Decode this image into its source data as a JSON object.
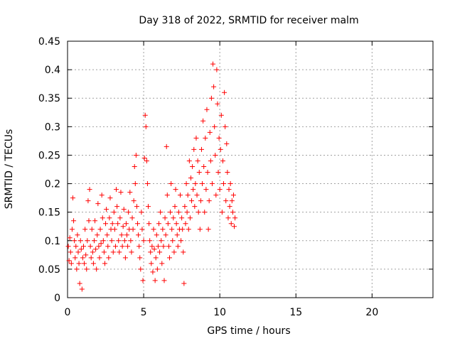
{
  "chart_data": {
    "type": "scatter",
    "title": "Day 318 of 2022, SRMTID for receiver malm",
    "xlabel": "GPS time / hours",
    "ylabel": "SRMTID / TECUs",
    "xlim": [
      0,
      24
    ],
    "ylim": [
      0,
      0.45
    ],
    "xticks": [
      {
        "value": 0,
        "label": "0"
      },
      {
        "value": 5,
        "label": "5"
      },
      {
        "value": 10,
        "label": "10"
      },
      {
        "value": 15,
        "label": "15"
      },
      {
        "value": 20,
        "label": "20"
      }
    ],
    "yticks": [
      {
        "value": 0,
        "label": "0"
      },
      {
        "value": 0.05,
        "label": "0.05"
      },
      {
        "value": 0.1,
        "label": "0.1"
      },
      {
        "value": 0.15,
        "label": "0.15"
      },
      {
        "value": 0.2,
        "label": "0.2"
      },
      {
        "value": 0.25,
        "label": "0.25"
      },
      {
        "value": 0.3,
        "label": "0.3"
      },
      {
        "value": 0.35,
        "label": "0.35"
      },
      {
        "value": 0.4,
        "label": "0.4"
      },
      {
        "value": 0.45,
        "label": "0.45"
      }
    ],
    "grid": true,
    "marker": "plus",
    "color": "#ff0000",
    "series": [
      {
        "points": [
          [
            0.05,
            0.09
          ],
          [
            0.1,
            0.065
          ],
          [
            0.15,
            0.105
          ],
          [
            0.2,
            0.08
          ],
          [
            0.25,
            0.06
          ],
          [
            0.3,
            0.12
          ],
          [
            0.35,
            0.175
          ],
          [
            0.4,
            0.135
          ],
          [
            0.45,
            0.1
          ],
          [
            0.5,
            0.07
          ],
          [
            0.55,
            0.09
          ],
          [
            0.6,
            0.05
          ],
          [
            0.65,
            0.11
          ],
          [
            0.7,
            0.08
          ],
          [
            0.75,
            0.06
          ],
          [
            0.8,
            0.025
          ],
          [
            0.85,
            0.1
          ],
          [
            0.9,
            0.085
          ],
          [
            0.95,
            0.015
          ],
          [
            1.0,
            0.07
          ],
          [
            1.05,
            0.09
          ],
          [
            1.1,
            0.06
          ],
          [
            1.15,
            0.12
          ],
          [
            1.2,
            0.075
          ],
          [
            1.25,
            0.05
          ],
          [
            1.3,
            0.1
          ],
          [
            1.35,
            0.17
          ],
          [
            1.4,
            0.135
          ],
          [
            1.45,
            0.19
          ],
          [
            1.5,
            0.09
          ],
          [
            1.55,
            0.07
          ],
          [
            1.6,
            0.12
          ],
          [
            1.65,
            0.08
          ],
          [
            1.7,
            0.06
          ],
          [
            1.75,
            0.1
          ],
          [
            1.8,
            0.135
          ],
          [
            1.85,
            0.085
          ],
          [
            1.9,
            0.05
          ],
          [
            1.95,
            0.11
          ],
          [
            2.0,
            0.165
          ],
          [
            2.05,
            0.09
          ],
          [
            2.1,
            0.07
          ],
          [
            2.15,
            0.12
          ],
          [
            2.2,
            0.095
          ],
          [
            2.25,
            0.18
          ],
          [
            2.3,
            0.14
          ],
          [
            2.35,
            0.1
          ],
          [
            2.4,
            0.08
          ],
          [
            2.45,
            0.06
          ],
          [
            2.5,
            0.13
          ],
          [
            2.55,
            0.155
          ],
          [
            2.6,
            0.11
          ],
          [
            2.65,
            0.09
          ],
          [
            2.7,
            0.07
          ],
          [
            2.75,
            0.14
          ],
          [
            2.8,
            0.175
          ],
          [
            2.85,
            0.12
          ],
          [
            2.9,
            0.1
          ],
          [
            2.95,
            0.13
          ],
          [
            3.0,
            0.08
          ],
          [
            3.05,
            0.15
          ],
          [
            3.1,
            0.12
          ],
          [
            3.15,
            0.09
          ],
          [
            3.2,
            0.19
          ],
          [
            3.25,
            0.16
          ],
          [
            3.3,
            0.13
          ],
          [
            3.35,
            0.1
          ],
          [
            3.4,
            0.08
          ],
          [
            3.45,
            0.14
          ],
          [
            3.5,
            0.185
          ],
          [
            3.55,
            0.11
          ],
          [
            3.6,
            0.09
          ],
          [
            3.65,
            0.125
          ],
          [
            3.7,
            0.155
          ],
          [
            3.75,
            0.1
          ],
          [
            3.8,
            0.07
          ],
          [
            3.85,
            0.13
          ],
          [
            3.9,
            0.11
          ],
          [
            3.95,
            0.09
          ],
          [
            4.0,
            0.15
          ],
          [
            4.05,
            0.12
          ],
          [
            4.1,
            0.185
          ],
          [
            4.15,
            0.1
          ],
          [
            4.2,
            0.08
          ],
          [
            4.25,
            0.14
          ],
          [
            4.3,
            0.12
          ],
          [
            4.35,
            0.17
          ],
          [
            4.4,
            0.23
          ],
          [
            4.45,
            0.2
          ],
          [
            4.5,
            0.25
          ],
          [
            4.55,
            0.16
          ],
          [
            4.6,
            0.13
          ],
          [
            4.65,
            0.11
          ],
          [
            4.7,
            0.09
          ],
          [
            4.75,
            0.07
          ],
          [
            4.8,
            0.05
          ],
          [
            4.85,
            0.15
          ],
          [
            4.9,
            0.12
          ],
          [
            4.95,
            0.03
          ],
          [
            5.0,
            0.1
          ],
          [
            5.05,
            0.245
          ],
          [
            5.1,
            0.32
          ],
          [
            5.15,
            0.3
          ],
          [
            5.2,
            0.24
          ],
          [
            5.25,
            0.2
          ],
          [
            5.3,
            0.16
          ],
          [
            5.35,
            0.13
          ],
          [
            5.4,
            0.1
          ],
          [
            5.45,
            0.08
          ],
          [
            5.5,
            0.06
          ],
          [
            5.55,
            0.09
          ],
          [
            5.6,
            0.045
          ],
          [
            5.65,
            0.12
          ],
          [
            5.7,
            0.085
          ],
          [
            5.75,
            0.03
          ],
          [
            5.8,
            0.07
          ],
          [
            5.85,
            0.11
          ],
          [
            5.9,
            0.05
          ],
          [
            5.95,
            0.09
          ],
          [
            6.0,
            0.13
          ],
          [
            6.05,
            0.08
          ],
          [
            6.1,
            0.15
          ],
          [
            6.15,
            0.1
          ],
          [
            6.2,
            0.06
          ],
          [
            6.25,
            0.12
          ],
          [
            6.3,
            0.09
          ],
          [
            6.35,
            0.03
          ],
          [
            6.4,
            0.14
          ],
          [
            6.45,
            0.11
          ],
          [
            6.5,
            0.265
          ],
          [
            6.55,
            0.18
          ],
          [
            6.6,
            0.13
          ],
          [
            6.65,
            0.09
          ],
          [
            6.7,
            0.07
          ],
          [
            6.75,
            0.15
          ],
          [
            6.8,
            0.2
          ],
          [
            6.85,
            0.12
          ],
          [
            6.9,
            0.1
          ],
          [
            6.95,
            0.14
          ],
          [
            7.0,
            0.08
          ],
          [
            7.05,
            0.16
          ],
          [
            7.1,
            0.19
          ],
          [
            7.15,
            0.13
          ],
          [
            7.2,
            0.11
          ],
          [
            7.25,
            0.09
          ],
          [
            7.3,
            0.15
          ],
          [
            7.35,
            0.12
          ],
          [
            7.4,
            0.18
          ],
          [
            7.45,
            0.1
          ],
          [
            7.5,
            0.14
          ],
          [
            7.55,
            0.12
          ],
          [
            7.6,
            0.08
          ],
          [
            7.65,
            0.025
          ],
          [
            7.7,
            0.16
          ],
          [
            7.75,
            0.13
          ],
          [
            7.8,
            0.2
          ],
          [
            7.85,
            0.15
          ],
          [
            7.9,
            0.18
          ],
          [
            7.95,
            0.12
          ],
          [
            8.0,
            0.24
          ],
          [
            8.05,
            0.14
          ],
          [
            8.1,
            0.21
          ],
          [
            8.15,
            0.17
          ],
          [
            8.2,
            0.23
          ],
          [
            8.25,
            0.19
          ],
          [
            8.3,
            0.26
          ],
          [
            8.35,
            0.16
          ],
          [
            8.4,
            0.2
          ],
          [
            8.45,
            0.28
          ],
          [
            8.5,
            0.18
          ],
          [
            8.55,
            0.24
          ],
          [
            8.6,
            0.15
          ],
          [
            8.65,
            0.22
          ],
          [
            8.7,
            0.12
          ],
          [
            8.75,
            0.17
          ],
          [
            8.8,
            0.26
          ],
          [
            8.85,
            0.2
          ],
          [
            8.9,
            0.31
          ],
          [
            8.95,
            0.23
          ],
          [
            9.0,
            0.15
          ],
          [
            9.05,
            0.28
          ],
          [
            9.1,
            0.19
          ],
          [
            9.15,
            0.33
          ],
          [
            9.2,
            0.22
          ],
          [
            9.25,
            0.12
          ],
          [
            9.3,
            0.17
          ],
          [
            9.35,
            0.29
          ],
          [
            9.4,
            0.24
          ],
          [
            9.45,
            0.35
          ],
          [
            9.5,
            0.2
          ],
          [
            9.55,
            0.41
          ],
          [
            9.6,
            0.37
          ],
          [
            9.65,
            0.3
          ],
          [
            9.7,
            0.25
          ],
          [
            9.75,
            0.18
          ],
          [
            9.8,
            0.4
          ],
          [
            9.85,
            0.34
          ],
          [
            9.9,
            0.22
          ],
          [
            9.95,
            0.28
          ],
          [
            10.0,
            0.19
          ],
          [
            10.05,
            0.26
          ],
          [
            10.1,
            0.32
          ],
          [
            10.15,
            0.15
          ],
          [
            10.2,
            0.24
          ],
          [
            10.25,
            0.2
          ],
          [
            10.3,
            0.36
          ],
          [
            10.35,
            0.3
          ],
          [
            10.4,
            0.17
          ],
          [
            10.45,
            0.27
          ],
          [
            10.5,
            0.22
          ],
          [
            10.55,
            0.14
          ],
          [
            10.6,
            0.19
          ],
          [
            10.65,
            0.16
          ],
          [
            10.7,
            0.2
          ],
          [
            10.75,
            0.13
          ],
          [
            10.8,
            0.17
          ],
          [
            10.85,
            0.15
          ],
          [
            10.9,
            0.18
          ],
          [
            10.95,
            0.125
          ],
          [
            11.0,
            0.14
          ]
        ]
      }
    ]
  }
}
